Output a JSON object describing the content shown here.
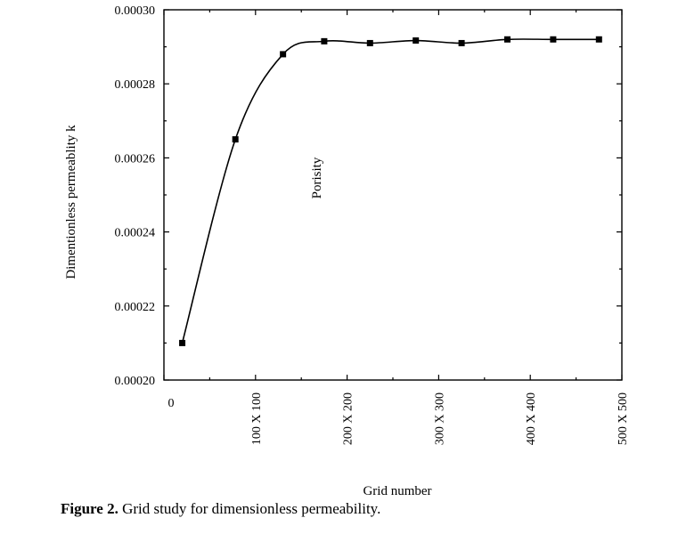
{
  "chart_data": {
    "type": "line",
    "xlabel": "Grid number",
    "ylabel": "Dimentionless permeablity k",
    "annotation": "Porisity",
    "xlim": [
      0,
      500
    ],
    "ylim": [
      0.0002,
      0.0003
    ],
    "y_ticks": [
      "0.00020",
      "0.00022",
      "0.00024",
      "0.00026",
      "0.00028",
      "0.00030"
    ],
    "y_tick_values": [
      0.0002,
      0.00022,
      0.00024,
      0.00026,
      0.00028,
      0.0003
    ],
    "x_ticks": [
      "0",
      "100 X 100",
      "200 X 200",
      "300 X 300",
      "400 X 400",
      "500 X 500"
    ],
    "x_tick_values": [
      0,
      100,
      200,
      300,
      400,
      500
    ],
    "series": [
      {
        "x": [
          20,
          78,
          130,
          175,
          225,
          275,
          325,
          375,
          425,
          475
        ],
        "y": [
          0.00021,
          0.000265,
          0.000288,
          0.0002915,
          0.000291,
          0.0002917,
          0.000291,
          0.000292,
          0.000292,
          0.000292
        ]
      }
    ],
    "grid": false,
    "marker": "square"
  },
  "caption": {
    "bold": "Figure 2.",
    "text": " Grid study for dimensionless permeability."
  }
}
